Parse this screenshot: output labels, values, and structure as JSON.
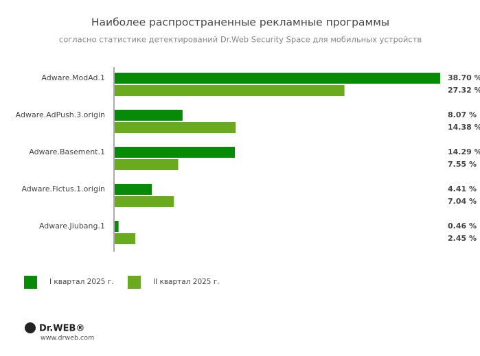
{
  "chart_data": {
    "type": "bar",
    "orientation": "horizontal",
    "title": "Наиболее распространенные рекламные программы",
    "subtitle": "согласно статистике детектирований Dr.Web Security Space для мобильных устройств",
    "categories": [
      "Adware.ModAd.1",
      "Adware.AdPush.3.origin",
      "Adware.Basement.1",
      "Adware.Fictus.1.origin",
      "Adware.Jiubang.1"
    ],
    "series": [
      {
        "name": "I квартал 2025 г.",
        "color": "#078a07",
        "values": [
          38.7,
          8.07,
          14.29,
          4.41,
          0.46
        ],
        "value_labels": [
          "38.70 %",
          "8.07 %",
          "14.29 %",
          "4.41 %",
          "0.46 %"
        ]
      },
      {
        "name": "II квартал 2025 г.",
        "color": "#6aaa1e",
        "values": [
          27.32,
          14.38,
          7.55,
          7.04,
          2.45
        ],
        "value_labels": [
          "27.32 %",
          "14.38 %",
          "7.55 %",
          "7.04 %",
          "2.45 %"
        ]
      }
    ]
  },
  "footer": {
    "brand": "Dr.WEB®",
    "url": "www.drweb.com"
  }
}
